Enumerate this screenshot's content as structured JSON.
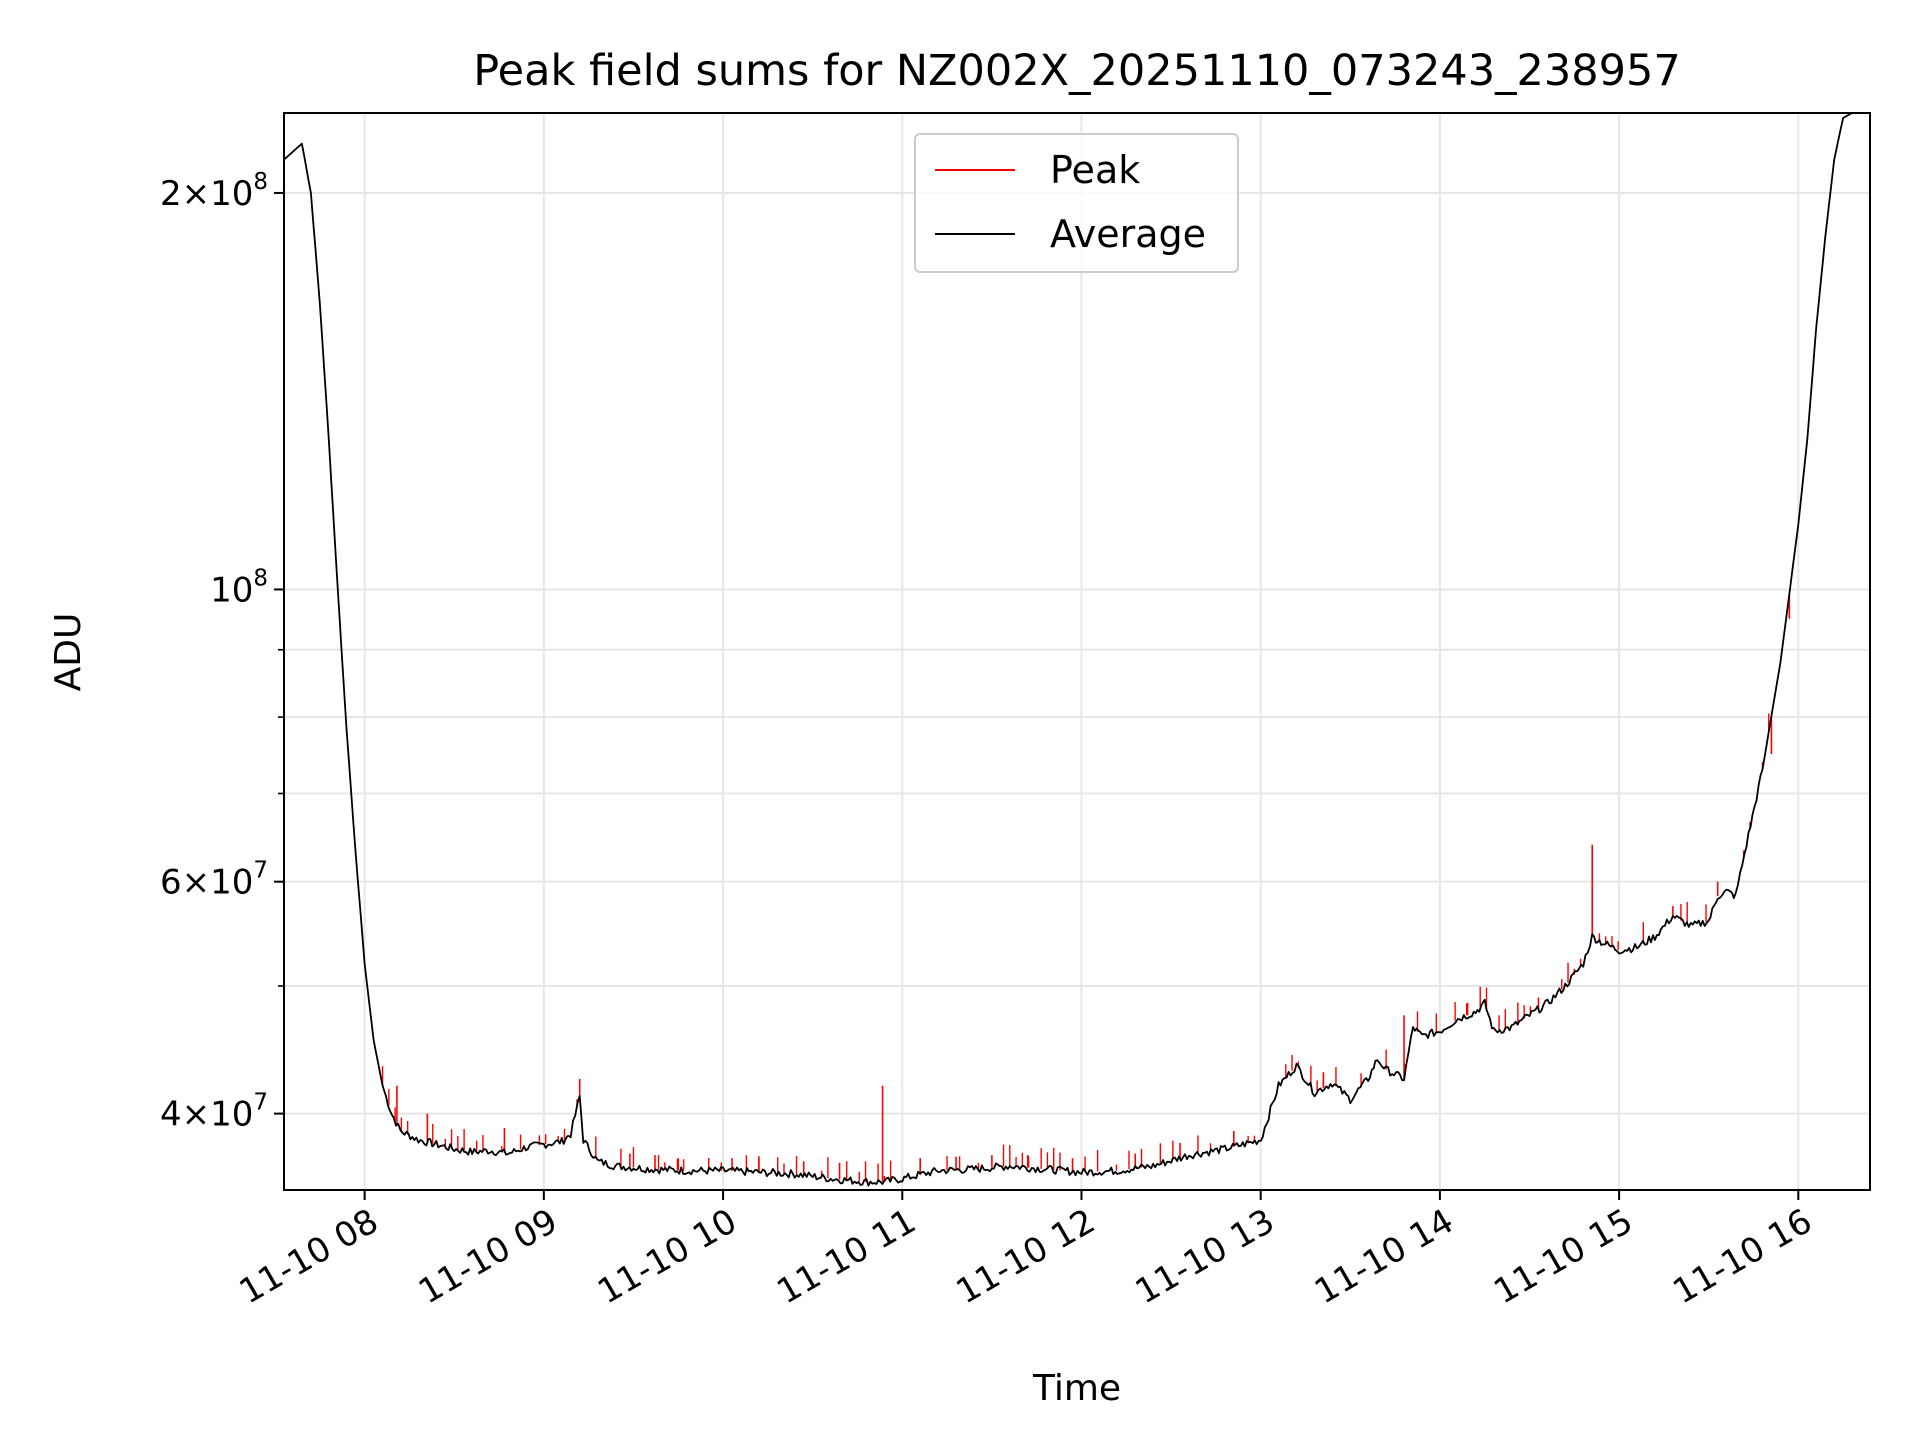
{
  "chart_data": {
    "type": "line",
    "title": "Peak field sums for NZ002X_20251110_073243_238957",
    "xlabel": "Time",
    "ylabel": "ADU",
    "y_scale": "log",
    "ylim": [
      35000000,
      230000000
    ],
    "xlim_hours": [
      7.55,
      16.4
    ],
    "grid": true,
    "legend_position": "upper center",
    "x_ticks": [
      {
        "value": 8,
        "label": "11-10 08"
      },
      {
        "value": 9,
        "label": "11-10 09"
      },
      {
        "value": 10,
        "label": "11-10 10"
      },
      {
        "value": 11,
        "label": "11-10 11"
      },
      {
        "value": 12,
        "label": "11-10 12"
      },
      {
        "value": 13,
        "label": "11-10 13"
      },
      {
        "value": 14,
        "label": "11-10 14"
      },
      {
        "value": 15,
        "label": "11-10 15"
      },
      {
        "value": 16,
        "label": "11-10 16"
      }
    ],
    "y_major_ticks": [
      {
        "value": 40000000,
        "mantissa": "4",
        "exponent": "7"
      },
      {
        "value": 60000000,
        "mantissa": "6",
        "exponent": "7"
      },
      {
        "value": 100000000,
        "mantissa": "",
        "exponent": "8"
      },
      {
        "value": 200000000,
        "mantissa": "2",
        "exponent": "8"
      }
    ],
    "y_minor_ticks": [
      50000000,
      70000000,
      80000000,
      90000000
    ],
    "times_text": "×",
    "base_text": "10",
    "series": [
      {
        "name": "Average",
        "color": "#000000",
        "points": [
          [
            7.55,
            212000000
          ],
          [
            7.65,
            218000000
          ],
          [
            7.7,
            200000000
          ],
          [
            7.75,
            165000000
          ],
          [
            7.8,
            130000000
          ],
          [
            7.85,
            100000000
          ],
          [
            7.9,
            78000000
          ],
          [
            7.95,
            63000000
          ],
          [
            8.0,
            52000000
          ],
          [
            8.05,
            45500000
          ],
          [
            8.1,
            42000000
          ],
          [
            8.15,
            40000000
          ],
          [
            8.2,
            38800000
          ],
          [
            8.3,
            38200000
          ],
          [
            8.4,
            37900000
          ],
          [
            8.5,
            37600000
          ],
          [
            8.6,
            37400000
          ],
          [
            8.7,
            37500000
          ],
          [
            8.8,
            37300000
          ],
          [
            8.9,
            37700000
          ],
          [
            9.0,
            37900000
          ],
          [
            9.1,
            38100000
          ],
          [
            9.15,
            38600000
          ],
          [
            9.2,
            41200000
          ],
          [
            9.22,
            38200000
          ],
          [
            9.3,
            36800000
          ],
          [
            9.4,
            36500000
          ],
          [
            9.6,
            36300000
          ],
          [
            9.8,
            36200000
          ],
          [
            10.0,
            36200000
          ],
          [
            10.2,
            36100000
          ],
          [
            10.4,
            36000000
          ],
          [
            10.6,
            35700000
          ],
          [
            10.8,
            35500000
          ],
          [
            10.9,
            35500000
          ],
          [
            11.0,
            35700000
          ],
          [
            11.2,
            36200000
          ],
          [
            11.4,
            36300000
          ],
          [
            11.6,
            36500000
          ],
          [
            11.8,
            36300000
          ],
          [
            12.0,
            36100000
          ],
          [
            12.2,
            36200000
          ],
          [
            12.4,
            36500000
          ],
          [
            12.6,
            37200000
          ],
          [
            12.8,
            37600000
          ],
          [
            13.0,
            38200000
          ],
          [
            13.1,
            42000000
          ],
          [
            13.2,
            43500000
          ],
          [
            13.3,
            41500000
          ],
          [
            13.4,
            42200000
          ],
          [
            13.5,
            41000000
          ],
          [
            13.6,
            42500000
          ],
          [
            13.65,
            44000000
          ],
          [
            13.7,
            43200000
          ],
          [
            13.8,
            42500000
          ],
          [
            13.85,
            46500000
          ],
          [
            13.9,
            45800000
          ],
          [
            14.0,
            46200000
          ],
          [
            14.1,
            47200000
          ],
          [
            14.2,
            47800000
          ],
          [
            14.25,
            48500000
          ],
          [
            14.3,
            46200000
          ],
          [
            14.4,
            46500000
          ],
          [
            14.5,
            47500000
          ],
          [
            14.6,
            48500000
          ],
          [
            14.7,
            50000000
          ],
          [
            14.8,
            52000000
          ],
          [
            14.85,
            54500000
          ],
          [
            14.9,
            54000000
          ],
          [
            15.0,
            53200000
          ],
          [
            15.1,
            53500000
          ],
          [
            15.2,
            54500000
          ],
          [
            15.3,
            56500000
          ],
          [
            15.4,
            55500000
          ],
          [
            15.5,
            56000000
          ],
          [
            15.55,
            58500000
          ],
          [
            15.6,
            59000000
          ],
          [
            15.65,
            58500000
          ],
          [
            15.7,
            63000000
          ],
          [
            15.8,
            73000000
          ],
          [
            15.9,
            88000000
          ],
          [
            16.0,
            112000000
          ],
          [
            16.05,
            130000000
          ],
          [
            16.1,
            158000000
          ],
          [
            16.15,
            185000000
          ],
          [
            16.2,
            212000000
          ],
          [
            16.25,
            228000000
          ],
          [
            16.3,
            230000000
          ],
          [
            16.4,
            230000000
          ]
        ]
      },
      {
        "name": "Peak",
        "color": "#ff0000",
        "spikes": [
          [
            8.18,
            42000000
          ],
          [
            8.35,
            40000000
          ],
          [
            8.78,
            39000000
          ],
          [
            9.2,
            42500000
          ],
          [
            9.48,
            37300000
          ],
          [
            9.62,
            37200000
          ],
          [
            9.75,
            37000000
          ],
          [
            10.05,
            37000000
          ],
          [
            10.2,
            37000000
          ],
          [
            10.45,
            36800000
          ],
          [
            10.65,
            36700000
          ],
          [
            10.89,
            42000000
          ],
          [
            11.1,
            37000000
          ],
          [
            11.3,
            37100000
          ],
          [
            11.5,
            37200000
          ],
          [
            11.7,
            37200000
          ],
          [
            11.95,
            37000000
          ],
          [
            12.3,
            37300000
          ],
          [
            12.55,
            38000000
          ],
          [
            12.85,
            38800000
          ],
          [
            13.35,
            43000000
          ],
          [
            13.8,
            47500000
          ],
          [
            14.15,
            48500000
          ],
          [
            14.55,
            49000000
          ],
          [
            14.85,
            64000000
          ],
          [
            15.3,
            57500000
          ],
          [
            15.55,
            60000000
          ],
          [
            15.85,
            75000000
          ],
          [
            15.95,
            95000000
          ]
        ]
      }
    ]
  }
}
